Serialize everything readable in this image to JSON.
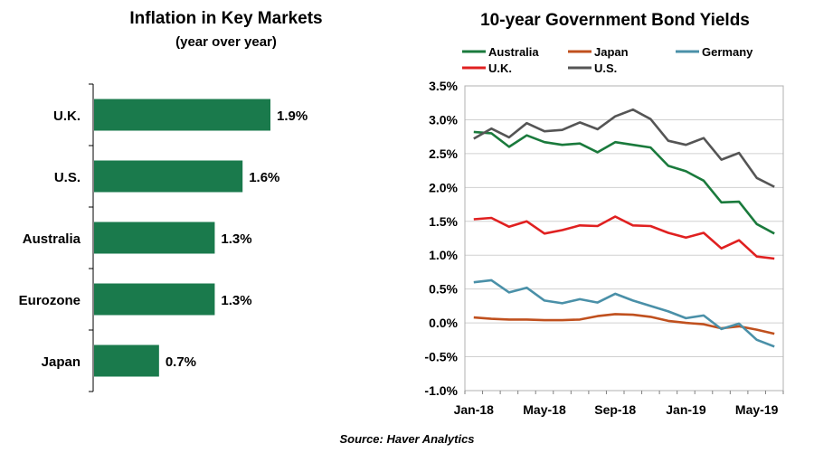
{
  "source": "Source: Haver Analytics",
  "colors": {
    "bar": "#1a7a4c",
    "axis": "#000000",
    "grid": "#d0d0d0"
  },
  "chart_data": [
    {
      "type": "bar",
      "orientation": "horizontal",
      "title": "Inflation in Key Markets",
      "subtitle": "(year over year)",
      "categories": [
        "U.K.",
        "U.S.",
        "Australia",
        "Eurozone",
        "Japan"
      ],
      "values": [
        1.9,
        1.6,
        1.3,
        1.3,
        0.7
      ],
      "labels": [
        "1.9%",
        "1.6%",
        "1.3%",
        "1.3%",
        "0.7%"
      ],
      "xlim": [
        0,
        2.5
      ],
      "grid": false
    },
    {
      "type": "line",
      "title": "10-year Government Bond Yields",
      "x": [
        "Jan-18",
        "Feb-18",
        "Mar-18",
        "Apr-18",
        "May-18",
        "Jun-18",
        "Jul-18",
        "Aug-18",
        "Sep-18",
        "Oct-18",
        "Nov-18",
        "Dec-18",
        "Jan-19",
        "Feb-19",
        "Mar-19",
        "Apr-19",
        "May-19",
        "Jun-19"
      ],
      "x_tick_labels": [
        "Jan-18",
        "May-18",
        "Sep-18",
        "Jan-19",
        "May-19"
      ],
      "ylim": [
        -1.0,
        3.5
      ],
      "y_tick_labels": [
        "-1.0%",
        "-0.5%",
        "0.0%",
        "0.5%",
        "1.0%",
        "1.5%",
        "2.0%",
        "2.5%",
        "3.0%",
        "3.5%"
      ],
      "grid": true,
      "legend_position": "top",
      "series": [
        {
          "name": "Australia",
          "color": "#1a7a3c",
          "values": [
            2.82,
            2.8,
            2.6,
            2.77,
            2.67,
            2.63,
            2.65,
            2.52,
            2.67,
            2.63,
            2.59,
            2.32,
            2.24,
            2.1,
            1.78,
            1.79,
            1.46,
            1.32
          ]
        },
        {
          "name": "Japan",
          "color": "#c0501e",
          "values": [
            0.08,
            0.06,
            0.05,
            0.05,
            0.04,
            0.04,
            0.05,
            0.1,
            0.13,
            0.12,
            0.09,
            0.03,
            0.0,
            -0.02,
            -0.08,
            -0.05,
            -0.1,
            -0.16
          ]
        },
        {
          "name": "Germany",
          "color": "#4a90a8",
          "values": [
            0.6,
            0.63,
            0.45,
            0.52,
            0.33,
            0.29,
            0.35,
            0.3,
            0.43,
            0.33,
            0.25,
            0.17,
            0.07,
            0.11,
            -0.09,
            -0.01,
            -0.25,
            -0.35
          ]
        },
        {
          "name": "U.K.",
          "color": "#e02020",
          "values": [
            1.53,
            1.55,
            1.42,
            1.5,
            1.32,
            1.37,
            1.44,
            1.43,
            1.57,
            1.44,
            1.43,
            1.33,
            1.26,
            1.33,
            1.1,
            1.22,
            0.98,
            0.95
          ]
        },
        {
          "name": "U.S.",
          "color": "#555555",
          "values": [
            2.72,
            2.87,
            2.74,
            2.95,
            2.83,
            2.85,
            2.96,
            2.86,
            3.05,
            3.15,
            3.01,
            2.69,
            2.63,
            2.73,
            2.41,
            2.51,
            2.14,
            2.01
          ]
        }
      ]
    }
  ]
}
